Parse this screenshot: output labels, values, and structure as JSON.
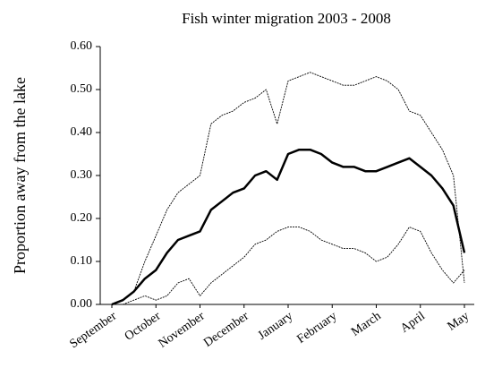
{
  "chart_data": {
    "type": "line",
    "title": "Fish winter migration 2003 - 2008",
    "y_label": "Proportion away from the lake",
    "categories": [
      "September",
      null,
      null,
      null,
      "October",
      null,
      null,
      null,
      "November",
      null,
      null,
      null,
      "December",
      null,
      null,
      null,
      "January",
      null,
      null,
      null,
      "February",
      null,
      null,
      null,
      "March",
      null,
      null,
      null,
      "April",
      null,
      null,
      null,
      "May"
    ],
    "series": [
      {
        "color": "#000000",
        "style": "thin",
        "values": [
          0,
          0.01,
          0.03,
          0.1,
          0.16,
          0.22,
          0.26,
          0.28,
          0.3,
          0.42,
          0.44,
          0.45,
          0.47,
          0.48,
          0.5,
          0.42,
          0.52,
          0.53,
          0.54,
          0.53,
          0.52,
          0.51,
          0.51,
          0.52,
          0.53,
          0.52,
          0.5,
          0.45,
          0.44,
          0.4,
          0.36,
          0.3,
          0.05
        ]
      },
      {
        "color": "#000000",
        "style": "thick",
        "values": [
          0,
          0.01,
          0.03,
          0.06,
          0.08,
          0.12,
          0.15,
          0.16,
          0.17,
          0.22,
          0.24,
          0.26,
          0.27,
          0.3,
          0.31,
          0.29,
          0.35,
          0.36,
          0.36,
          0.35,
          0.33,
          0.32,
          0.32,
          0.31,
          0.31,
          0.32,
          0.33,
          0.34,
          0.32,
          0.3,
          0.27,
          0.23,
          0.12
        ]
      },
      {
        "color": "#000000",
        "style": "thin",
        "values": [
          0,
          0,
          0.01,
          0.02,
          0.01,
          0.02,
          0.05,
          0.06,
          0.02,
          0.05,
          0.07,
          0.09,
          0.11,
          0.14,
          0.15,
          0.17,
          0.18,
          0.18,
          0.17,
          0.15,
          0.14,
          0.13,
          0.13,
          0.12,
          0.1,
          0.11,
          0.14,
          0.18,
          0.17,
          0.12,
          0.08,
          0.05,
          0.08
        ]
      }
    ],
    "ylim": [
      0,
      0.6
    ],
    "yticks": [
      {
        "value": 0,
        "label": "0.00"
      },
      {
        "value": 0.1,
        "label": "0.10"
      },
      {
        "value": 0.2,
        "label": "0.20"
      },
      {
        "value": 0.3,
        "label": "0.30"
      },
      {
        "value": 0.4,
        "label": "0.40"
      },
      {
        "value": 0.5,
        "label": "0.50"
      },
      {
        "value": 0.6,
        "label": "0.60"
      }
    ],
    "grid": false
  }
}
